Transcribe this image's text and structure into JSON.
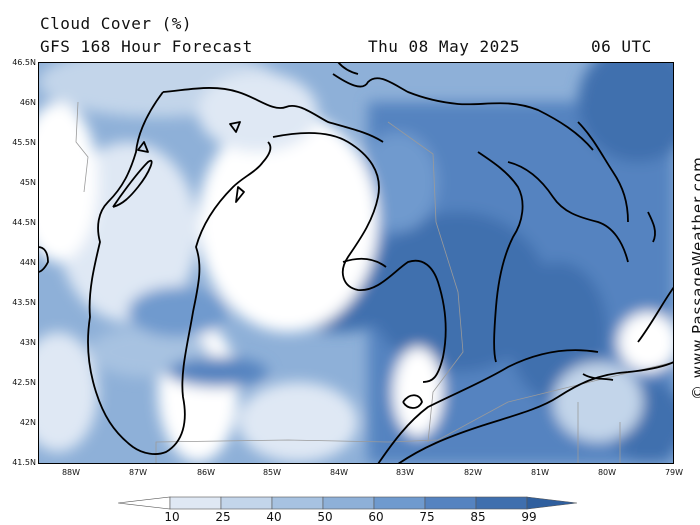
{
  "header": {
    "title": "Cloud Cover (%)",
    "subtitle": "GFS 168 Hour Forecast",
    "date": "Thu 08 May 2025",
    "time": "06 UTC"
  },
  "axes": {
    "lat_labels": [
      "46.5N",
      "46N",
      "45.5N",
      "45N",
      "44.5N",
      "44N",
      "43.5N",
      "43N",
      "42.5N",
      "42N",
      "41.5N"
    ],
    "lon_labels": [
      "88W",
      "87W",
      "86W",
      "85W",
      "84W",
      "83W",
      "82W",
      "81W",
      "80W",
      "79W"
    ]
  },
  "credit": "© www.PassageWeather.com",
  "legend": {
    "values": [
      "10",
      "25",
      "40",
      "50",
      "60",
      "75",
      "85",
      "99"
    ],
    "colors": [
      "#ffffff",
      "#dfe8f4",
      "#c3d5ea",
      "#a7c2e1",
      "#8eb0d8",
      "#6f9ace",
      "#5583c0",
      "#3f6fae",
      "#2f5f9e"
    ]
  }
}
